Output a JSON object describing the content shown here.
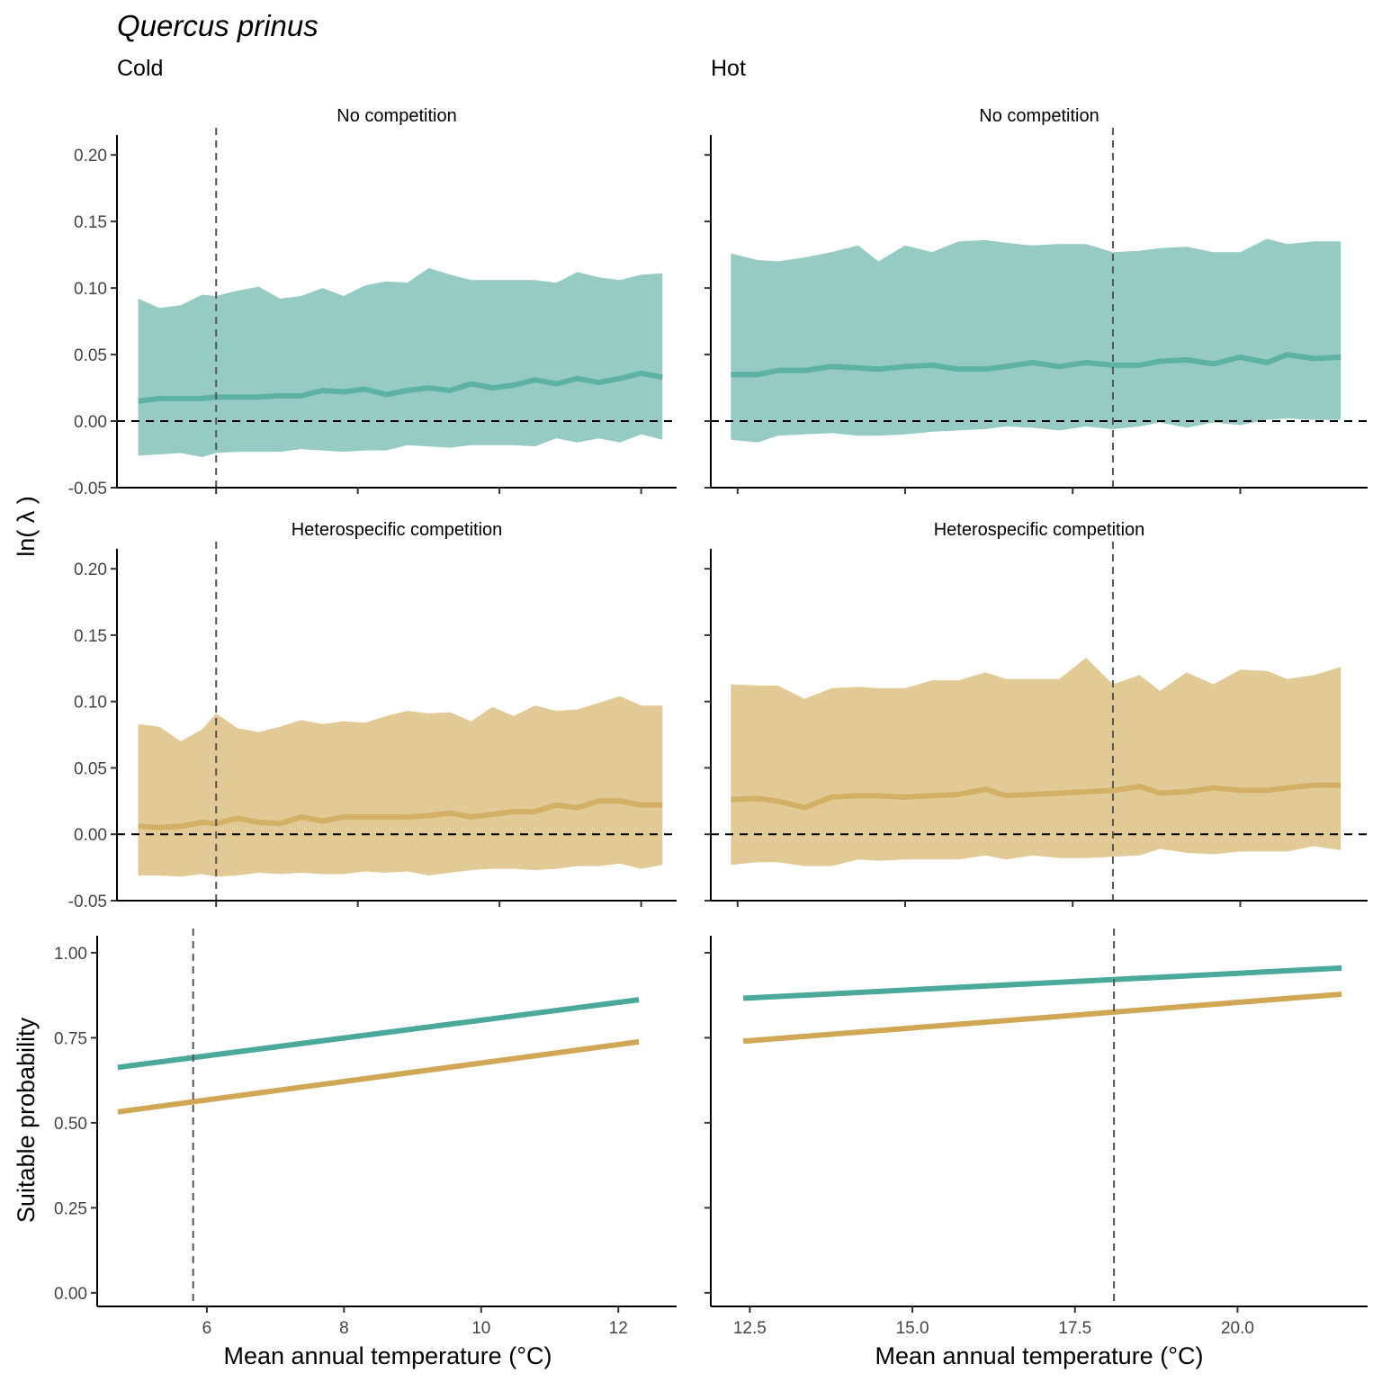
{
  "title": "Quercus prinus",
  "panels": {
    "cold": "Cold",
    "hot": "Hot"
  },
  "strips": {
    "no_comp": "No competition",
    "hetero": "Heterospecific competition"
  },
  "axis_titles": {
    "y_lambda": "ln( λ )",
    "y_suit": "Suitable probability",
    "x": "Mean annual temperature (°C)"
  },
  "colors": {
    "no_competition": "#4aa99a",
    "heterospecific": "#cfa755",
    "no_competition_band": "#96cbc3",
    "heterospecific_band": "#e2ca97"
  },
  "chart_data": [
    {
      "type": "area",
      "facet": "Cold / No competition",
      "xlim": [
        4.6,
        12.5
      ],
      "ylim": [
        -0.05,
        0.215
      ],
      "x_ticks": [
        6,
        8,
        10,
        12
      ],
      "y_ticks": [
        "0.20",
        "0.15",
        "0.10",
        "0.05",
        "0.00",
        "-0.05"
      ],
      "x": [
        4.9,
        5.2,
        5.5,
        5.8,
        6.0,
        6.3,
        6.6,
        6.9,
        7.2,
        7.5,
        7.8,
        8.1,
        8.4,
        8.7,
        9.0,
        9.3,
        9.6,
        9.9,
        10.2,
        10.5,
        10.8,
        11.1,
        11.4,
        11.7,
        12.0,
        12.3
      ],
      "mean": [
        0.015,
        0.017,
        0.017,
        0.017,
        0.018,
        0.018,
        0.018,
        0.019,
        0.019,
        0.023,
        0.022,
        0.024,
        0.02,
        0.023,
        0.025,
        0.023,
        0.028,
        0.025,
        0.027,
        0.031,
        0.028,
        0.032,
        0.029,
        0.032,
        0.036,
        0.033
      ],
      "upper": [
        0.092,
        0.085,
        0.087,
        0.095,
        0.094,
        0.098,
        0.101,
        0.092,
        0.094,
        0.1,
        0.094,
        0.102,
        0.105,
        0.104,
        0.115,
        0.11,
        0.106,
        0.106,
        0.106,
        0.106,
        0.104,
        0.112,
        0.108,
        0.106,
        0.11,
        0.111
      ],
      "lower": [
        -0.026,
        -0.025,
        -0.024,
        -0.027,
        -0.024,
        -0.023,
        -0.023,
        -0.023,
        -0.021,
        -0.022,
        -0.023,
        -0.022,
        -0.022,
        -0.018,
        -0.019,
        -0.02,
        -0.018,
        -0.018,
        -0.018,
        -0.019,
        -0.013,
        -0.016,
        -0.013,
        -0.016,
        -0.01,
        -0.014
      ],
      "reference_x": 6.0,
      "zero_line": 0.0
    },
    {
      "type": "area",
      "facet": "Hot / No competition",
      "xlim": [
        12.1,
        21.9
      ],
      "ylim": [
        -0.05,
        0.215
      ],
      "x_ticks": [
        "12.5",
        "15.0",
        "17.5",
        "20.0"
      ],
      "x": [
        12.4,
        12.8,
        13.1,
        13.5,
        13.9,
        14.3,
        14.6,
        15.0,
        15.4,
        15.8,
        16.2,
        16.5,
        16.9,
        17.3,
        17.7,
        18.1,
        18.5,
        18.8,
        19.2,
        19.6,
        20.0,
        20.4,
        20.7,
        21.1,
        21.5
      ],
      "mean": [
        0.035,
        0.035,
        0.038,
        0.038,
        0.041,
        0.04,
        0.039,
        0.041,
        0.042,
        0.039,
        0.039,
        0.041,
        0.044,
        0.041,
        0.044,
        0.042,
        0.042,
        0.045,
        0.046,
        0.043,
        0.048,
        0.044,
        0.05,
        0.047,
        0.048
      ],
      "upper": [
        0.126,
        0.121,
        0.12,
        0.123,
        0.127,
        0.132,
        0.12,
        0.132,
        0.127,
        0.135,
        0.136,
        0.134,
        0.132,
        0.133,
        0.133,
        0.127,
        0.128,
        0.13,
        0.131,
        0.127,
        0.127,
        0.137,
        0.133,
        0.135,
        0.135
      ],
      "lower": [
        -0.014,
        -0.016,
        -0.011,
        -0.01,
        -0.009,
        -0.011,
        -0.011,
        -0.01,
        -0.008,
        -0.007,
        -0.006,
        -0.004,
        -0.005,
        -0.007,
        -0.004,
        -0.006,
        -0.004,
        -0.001,
        -0.005,
        -0.001,
        -0.003,
        0.001,
        0.002,
        0.001,
        0.001
      ],
      "reference_x": 18.1,
      "zero_line": 0.0
    },
    {
      "type": "area",
      "facet": "Cold / Heterospecific competition",
      "xlim": [
        4.6,
        12.5
      ],
      "ylim": [
        -0.05,
        0.215
      ],
      "x_ticks": [
        6,
        8,
        10,
        12
      ],
      "y_ticks": [
        "0.20",
        "0.15",
        "0.10",
        "0.05",
        "0.00",
        "-0.05"
      ],
      "x": [
        4.9,
        5.2,
        5.5,
        5.8,
        6.0,
        6.3,
        6.6,
        6.9,
        7.2,
        7.5,
        7.8,
        8.1,
        8.4,
        8.7,
        9.0,
        9.3,
        9.6,
        9.9,
        10.2,
        10.5,
        10.8,
        11.1,
        11.4,
        11.7,
        12.0,
        12.3
      ],
      "mean": [
        0.006,
        0.005,
        0.006,
        0.009,
        0.008,
        0.012,
        0.009,
        0.008,
        0.013,
        0.01,
        0.013,
        0.013,
        0.013,
        0.013,
        0.014,
        0.016,
        0.013,
        0.015,
        0.017,
        0.017,
        0.022,
        0.02,
        0.025,
        0.025,
        0.022,
        0.022
      ],
      "upper": [
        0.083,
        0.081,
        0.07,
        0.079,
        0.091,
        0.08,
        0.077,
        0.081,
        0.086,
        0.083,
        0.085,
        0.084,
        0.089,
        0.093,
        0.091,
        0.092,
        0.085,
        0.096,
        0.089,
        0.097,
        0.093,
        0.094,
        0.099,
        0.104,
        0.097,
        0.097
      ],
      "lower": [
        -0.031,
        -0.031,
        -0.032,
        -0.03,
        -0.032,
        -0.031,
        -0.029,
        -0.03,
        -0.029,
        -0.03,
        -0.03,
        -0.028,
        -0.029,
        -0.028,
        -0.031,
        -0.029,
        -0.027,
        -0.026,
        -0.026,
        -0.027,
        -0.026,
        -0.024,
        -0.024,
        -0.022,
        -0.026,
        -0.023
      ],
      "reference_x": 6.0,
      "zero_line": 0.0
    },
    {
      "type": "area",
      "facet": "Hot / Heterospecific competition",
      "xlim": [
        12.1,
        21.9
      ],
      "ylim": [
        -0.05,
        0.215
      ],
      "x_ticks": [
        "12.5",
        "15.0",
        "17.5",
        "20.0"
      ],
      "x": [
        12.4,
        12.8,
        13.1,
        13.5,
        13.9,
        14.3,
        14.6,
        15.0,
        15.4,
        15.8,
        16.2,
        16.5,
        16.9,
        17.3,
        17.7,
        18.1,
        18.5,
        18.8,
        19.2,
        19.6,
        20.0,
        20.4,
        20.7,
        21.1,
        21.5
      ],
      "mean": [
        0.026,
        0.027,
        0.025,
        0.02,
        0.028,
        0.029,
        0.029,
        0.028,
        0.029,
        0.03,
        0.034,
        0.029,
        0.03,
        0.031,
        0.032,
        0.033,
        0.036,
        0.031,
        0.032,
        0.035,
        0.033,
        0.033,
        0.035,
        0.037,
        0.037
      ],
      "upper": [
        0.113,
        0.112,
        0.112,
        0.102,
        0.11,
        0.111,
        0.11,
        0.11,
        0.116,
        0.116,
        0.122,
        0.117,
        0.117,
        0.117,
        0.133,
        0.113,
        0.12,
        0.108,
        0.122,
        0.113,
        0.124,
        0.123,
        0.117,
        0.12,
        0.126
      ],
      "lower": [
        -0.023,
        -0.021,
        -0.021,
        -0.024,
        -0.024,
        -0.019,
        -0.02,
        -0.019,
        -0.019,
        -0.019,
        -0.016,
        -0.019,
        -0.016,
        -0.018,
        -0.018,
        -0.017,
        -0.016,
        -0.011,
        -0.014,
        -0.015,
        -0.013,
        -0.013,
        -0.013,
        -0.009,
        -0.012
      ],
      "reference_x": 18.1,
      "zero_line": 0.0
    },
    {
      "type": "line",
      "facet": "Cold / Suitable probability",
      "xlim": [
        4.4,
        12.85
      ],
      "ylim": [
        -0.04,
        1.05
      ],
      "x_ticks": [
        6,
        8,
        10,
        12
      ],
      "y_ticks": [
        "1.00",
        "0.75",
        "0.50",
        "0.25",
        "0.00"
      ],
      "x": [
        4.7,
        12.3
      ],
      "series": [
        {
          "name": "No competition",
          "values": [
            0.663,
            0.862
          ]
        },
        {
          "name": "Heterospecific competition",
          "values": [
            0.532,
            0.738
          ]
        }
      ],
      "reference_x": 5.8
    },
    {
      "type": "line",
      "facet": "Hot / Suitable probability",
      "xlim": [
        11.9,
        22.0
      ],
      "ylim": [
        -0.04,
        1.05
      ],
      "x_ticks": [
        "12.5",
        "15.0",
        "17.5",
        "20.0"
      ],
      "x": [
        12.4,
        21.6
      ],
      "series": [
        {
          "name": "No competition",
          "values": [
            0.866,
            0.955
          ]
        },
        {
          "name": "Heterospecific competition",
          "values": [
            0.74,
            0.878
          ]
        }
      ],
      "reference_x": 18.1
    }
  ]
}
